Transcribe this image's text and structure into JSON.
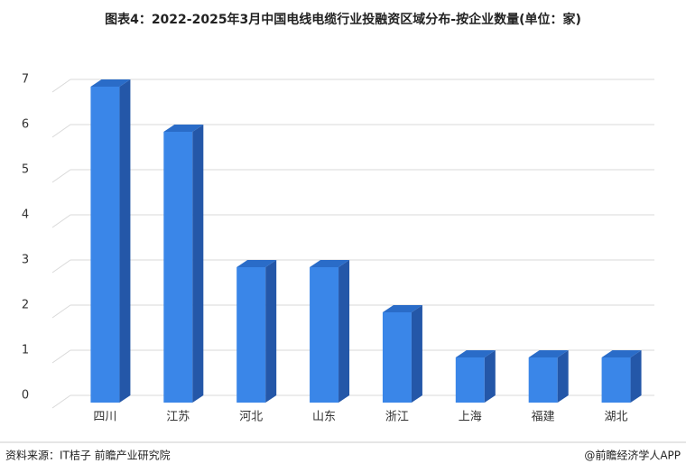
{
  "chart_data": {
    "type": "bar3d",
    "title": "图表4：2022-2025年3月中国电线电缆行业投融资区域分布-按企业数量(单位：家)",
    "categories": [
      "四川",
      "江苏",
      "河北",
      "山东",
      "浙江",
      "上海",
      "福建",
      "湖北"
    ],
    "values": [
      7,
      6,
      3,
      3,
      2,
      1,
      1,
      1
    ],
    "color": "#3a86e8",
    "ylim": [
      0,
      7
    ],
    "yticks": [
      0,
      1,
      2,
      3,
      4,
      5,
      6,
      7
    ],
    "grid": true,
    "source": "资料来源：IT桔子 前瞻产业研究院",
    "credit": "@前瞻经济学人APP"
  }
}
